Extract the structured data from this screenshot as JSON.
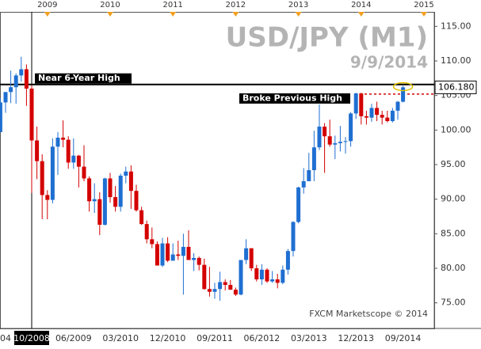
{
  "chart_data": {
    "type": "candlestick",
    "title": "USD/JPY (M1)",
    "subtitle": "9/9/2014",
    "credit": "FXCM Marketscope © 2014",
    "top_axis": [
      "2009",
      "2010",
      "2011",
      "2012",
      "2013",
      "2014",
      "2015"
    ],
    "x": [
      "04",
      null,
      null,
      null,
      null,
      null,
      "10/2008",
      null,
      null,
      null,
      null,
      null,
      null,
      null,
      "06/2009",
      null,
      null,
      null,
      null,
      null,
      null,
      null,
      null,
      "03/2010",
      null,
      null,
      null,
      null,
      null,
      null,
      null,
      null,
      "12/2010",
      null,
      null,
      null,
      null,
      null,
      null,
      null,
      null,
      "09/2011",
      null,
      null,
      null,
      null,
      null,
      null,
      null,
      null,
      "06/2012",
      null,
      null,
      null,
      null,
      null,
      null,
      null,
      null,
      "03/2013",
      null,
      null,
      null,
      null,
      null,
      null,
      null,
      null,
      "12/2013",
      null,
      null,
      null,
      null,
      null,
      null,
      null,
      null,
      "09/2014"
    ],
    "crosshair_index": 6,
    "up_color": "#1f6fd1",
    "down_color": "#d40000",
    "ohlc": [
      [
        99.7,
        104.6,
        99.7,
        104.0
      ],
      [
        104.0,
        105.5,
        102.5,
        105.5
      ],
      [
        105.5,
        108.6,
        103.9,
        106.2
      ],
      [
        106.2,
        108.2,
        103.8,
        107.9
      ],
      [
        107.9,
        110.6,
        107.0,
        108.8
      ],
      [
        108.8,
        109.5,
        103.5,
        106.0
      ],
      [
        106.0,
        106.5,
        90.9,
        98.5
      ],
      [
        98.5,
        100.5,
        92.9,
        95.5
      ],
      [
        95.5,
        96.5,
        87.1,
        90.6
      ],
      [
        90.6,
        91.3,
        87.1,
        89.9
      ],
      [
        89.9,
        98.8,
        89.4,
        97.6
      ],
      [
        97.6,
        99.7,
        93.5,
        98.9
      ],
      [
        98.9,
        101.4,
        97.5,
        98.6
      ],
      [
        98.6,
        99.1,
        94.4,
        95.3
      ],
      [
        95.3,
        98.8,
        94.4,
        96.3
      ],
      [
        96.3,
        96.4,
        91.7,
        94.7
      ],
      [
        94.7,
        97.8,
        92.6,
        93.0
      ],
      [
        93.0,
        93.3,
        88.2,
        89.7
      ],
      [
        89.7,
        92.3,
        88.0,
        90.0
      ],
      [
        90.0,
        91.0,
        84.8,
        86.3
      ],
      [
        86.3,
        93.1,
        86.2,
        93.0
      ],
      [
        93.0,
        93.8,
        89.5,
        90.3
      ],
      [
        90.3,
        91.9,
        88.2,
        88.9
      ],
      [
        88.9,
        93.7,
        88.2,
        93.4
      ],
      [
        93.4,
        94.7,
        92.3,
        94.0
      ],
      [
        94.0,
        94.9,
        88.6,
        91.2
      ],
      [
        91.2,
        92.1,
        88.2,
        88.4
      ],
      [
        88.4,
        88.9,
        86.3,
        86.4
      ],
      [
        86.4,
        86.9,
        83.6,
        84.2
      ],
      [
        84.2,
        85.9,
        82.9,
        83.5
      ],
      [
        83.5,
        83.9,
        80.4,
        80.4
      ],
      [
        80.4,
        84.4,
        80.2,
        83.6
      ],
      [
        83.6,
        84.5,
        80.9,
        81.1
      ],
      [
        81.1,
        83.6,
        81.1,
        82.0
      ],
      [
        82.0,
        84.0,
        81.2,
        81.8
      ],
      [
        81.8,
        85.0,
        76.2,
        83.1
      ],
      [
        83.1,
        85.5,
        81.2,
        81.2
      ],
      [
        81.2,
        82.2,
        79.6,
        81.5
      ],
      [
        81.5,
        81.7,
        79.7,
        80.5
      ],
      [
        80.5,
        81.4,
        76.9,
        77.0
      ],
      [
        77.0,
        80.2,
        75.9,
        76.6
      ],
      [
        76.6,
        77.9,
        75.6,
        77.0
      ],
      [
        77.0,
        79.5,
        75.3,
        78.0
      ],
      [
        78.0,
        78.4,
        76.8,
        77.6
      ],
      [
        77.6,
        78.3,
        76.9,
        76.9
      ],
      [
        76.9,
        77.2,
        76.0,
        76.2
      ],
      [
        76.2,
        81.2,
        76.1,
        81.2
      ],
      [
        81.2,
        84.2,
        80.6,
        82.9
      ],
      [
        82.9,
        82.9,
        79.6,
        80.0
      ],
      [
        80.0,
        80.5,
        78.1,
        78.4
      ],
      [
        78.4,
        80.6,
        77.6,
        79.8
      ],
      [
        79.8,
        80.0,
        77.9,
        78.1
      ],
      [
        78.1,
        79.6,
        77.9,
        78.4
      ],
      [
        78.4,
        79.2,
        77.1,
        77.9
      ],
      [
        77.9,
        80.4,
        77.7,
        79.8
      ],
      [
        79.8,
        82.8,
        79.1,
        82.5
      ],
      [
        82.5,
        86.8,
        81.7,
        86.7
      ],
      [
        86.7,
        91.8,
        86.5,
        91.7
      ],
      [
        91.7,
        94.5,
        90.8,
        92.6
      ],
      [
        92.6,
        96.7,
        92.6,
        94.2
      ],
      [
        94.2,
        99.9,
        92.6,
        97.5
      ],
      [
        97.5,
        103.7,
        97.1,
        100.5
      ],
      [
        100.5,
        101.0,
        93.8,
        99.1
      ],
      [
        99.1,
        101.5,
        97.6,
        97.9
      ],
      [
        97.9,
        99.2,
        95.8,
        98.1
      ],
      [
        98.1,
        100.6,
        96.9,
        98.3
      ],
      [
        98.3,
        99.0,
        96.6,
        98.4
      ],
      [
        98.4,
        102.6,
        97.6,
        102.4
      ],
      [
        102.4,
        105.4,
        101.6,
        105.3
      ],
      [
        105.3,
        105.4,
        100.8,
        102.0
      ],
      [
        102.0,
        102.8,
        100.8,
        101.8
      ],
      [
        101.8,
        103.8,
        101.2,
        103.2
      ],
      [
        103.2,
        104.1,
        101.3,
        102.2
      ],
      [
        102.2,
        102.8,
        100.8,
        101.8
      ],
      [
        101.8,
        102.8,
        101.1,
        101.3
      ],
      [
        101.3,
        103.2,
        101.1,
        102.8
      ],
      [
        102.8,
        104.2,
        101.5,
        104.1
      ],
      [
        104.1,
        106.4,
        104.0,
        106.18
      ]
    ],
    "ylim": [
      71.3,
      117.1
    ],
    "yticks": [
      {
        "value": 75,
        "label": "75.00"
      },
      {
        "value": 80,
        "label": "80.00"
      },
      {
        "value": 85,
        "label": "85.00"
      },
      {
        "value": 90,
        "label": "90.00"
      },
      {
        "value": 95,
        "label": "95.00"
      },
      {
        "value": 100,
        "label": "100.00"
      },
      {
        "value": 105,
        "label": "105.00"
      },
      {
        "value": 110,
        "label": "110.00"
      },
      {
        "value": 115,
        "label": "115.00"
      }
    ],
    "current_price": {
      "value": 106.18,
      "label": "106.180"
    },
    "annotations": [
      {
        "text": "Near 6-Year High",
        "value": 106.6,
        "color": "#000000"
      },
      {
        "text": "Broke Previous High",
        "value": 105.2,
        "color": "#d40000"
      }
    ]
  }
}
